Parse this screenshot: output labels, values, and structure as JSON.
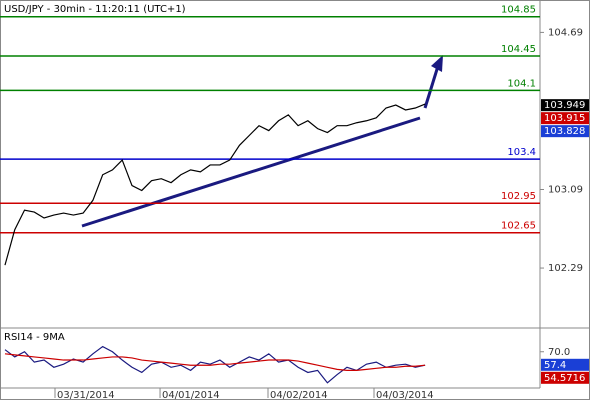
{
  "chart_data": [
    {
      "type": "line",
      "title": "USD/JPY - 30min - 11:20:11 (UTC+1)",
      "xlim": [
        -0.51,
        54.76
      ],
      "ylim": [
        101.71,
        105.02
      ],
      "yticks": [
        102.29,
        103.09,
        104.69
      ],
      "series": [
        {
          "color": "#000000",
          "values": [
            102.32,
            102.68,
            102.88,
            102.86,
            102.8,
            102.83,
            102.85,
            102.83,
            102.85,
            102.98,
            103.24,
            103.29,
            103.39,
            103.13,
            103.08,
            103.18,
            103.2,
            103.16,
            103.24,
            103.29,
            103.27,
            103.34,
            103.34,
            103.39,
            103.54,
            103.64,
            103.74,
            103.69,
            103.79,
            103.85,
            103.74,
            103.79,
            103.71,
            103.67,
            103.74,
            103.74,
            103.77,
            103.79,
            103.82,
            103.92,
            103.95,
            103.9,
            103.92,
            103.96
          ]
        }
      ],
      "levels": [
        {
          "value": 104.85,
          "color": "#008000"
        },
        {
          "value": 104.45,
          "color": "#008000"
        },
        {
          "value": 104.1,
          "color": "#008000"
        },
        {
          "value": 103.4,
          "color": "#0000cc"
        },
        {
          "value": 102.95,
          "color": "#cc0000"
        },
        {
          "value": 102.65,
          "color": "#cc0000"
        }
      ],
      "price_tags": [
        {
          "value": 103.949,
          "color": "#000000"
        },
        {
          "value": 103.915,
          "color": "#cc0000"
        },
        {
          "value": 103.828,
          "color": "#1a3fd6"
        }
      ]
    },
    {
      "type": "line",
      "title": "RSI14 - 9MA",
      "xlim": [
        -0.51,
        54.76
      ],
      "ylim": [
        35,
        91
      ],
      "yticks": [
        {
          "value": 70,
          "label": "70.0"
        }
      ],
      "xticks": [
        {
          "value": 5.12,
          "label": "03/31/2014"
        },
        {
          "value": 15.87,
          "label": "04/01/2014"
        },
        {
          "value": 26.92,
          "label": "04/02/2014"
        },
        {
          "value": 37.77,
          "label": "04/03/2014"
        }
      ],
      "series": [
        {
          "color": "#1a1a80",
          "values": [
            72,
            65,
            70,
            60,
            62,
            55,
            58,
            63,
            60,
            68,
            75,
            70,
            62,
            55,
            50,
            58,
            60,
            55,
            57,
            52,
            60,
            58,
            62,
            55,
            60,
            65,
            62,
            68,
            60,
            62,
            55,
            50,
            52,
            40,
            48,
            55,
            52,
            58,
            60,
            55,
            57,
            58,
            55,
            57
          ]
        },
        {
          "color": "#cc0000",
          "values": [
            68,
            67,
            66,
            65,
            64,
            63,
            62,
            62,
            62,
            63,
            64,
            65,
            65,
            64,
            62,
            61,
            60,
            59,
            58,
            57,
            57,
            57,
            58,
            58,
            59,
            60,
            61,
            62,
            62,
            62,
            61,
            59,
            57,
            55,
            53,
            52,
            52,
            53,
            54,
            55,
            55,
            56,
            56,
            57
          ]
        }
      ],
      "price_tags": [
        {
          "value": 57.4,
          "color": "#1a3fd6"
        },
        {
          "value": 54.5716,
          "color": "#cc0000"
        }
      ]
    }
  ]
}
